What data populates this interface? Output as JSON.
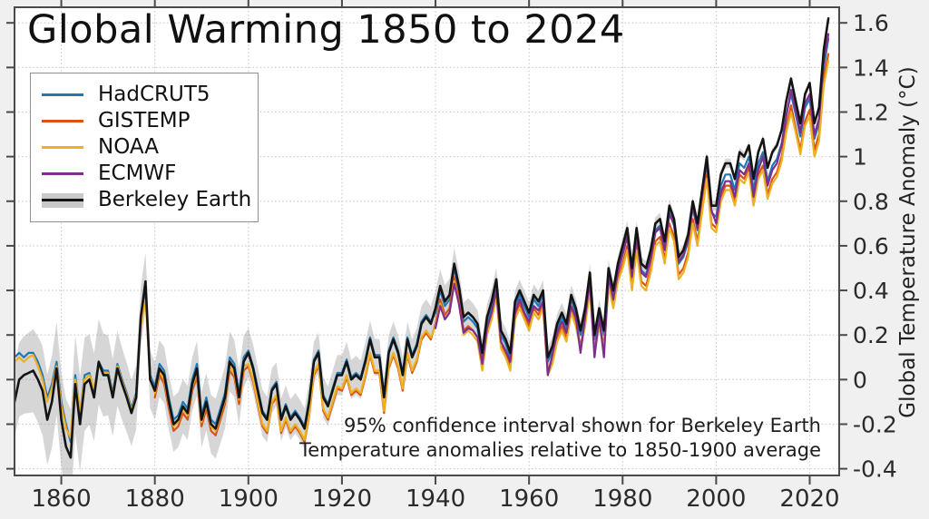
{
  "chart_data": {
    "type": "line",
    "title": "Global Warming 1850 to 2024",
    "right_axis_label": "Global Temperature Anomaly (°C)",
    "annotation_lines": [
      "95% confidence interval shown for Berkeley Earth",
      "Temperature anomalies relative to 1850-1900 average"
    ],
    "xlim": [
      1850,
      2026.3
    ],
    "ylim": [
      -0.43,
      1.67
    ],
    "x_ticks": [
      1860,
      1880,
      1900,
      1920,
      1940,
      1960,
      1980,
      2000,
      2020
    ],
    "y_ticks": [
      -0.4,
      -0.2,
      0,
      0.2,
      0.4,
      0.6,
      0.8,
      1,
      1.2,
      1.4,
      1.6
    ],
    "y_tick_labels": [
      "-0.4",
      "-0.2",
      "0",
      "0.2",
      "0.4",
      "0.6",
      "0.8",
      "1",
      "1.2",
      "1.4",
      "1.6"
    ],
    "grid": true,
    "legend_position": "upper-left",
    "colors": {
      "figure_background": "#f0f0f0",
      "plot_background": "#ffffff",
      "gridline": "#c9c9c9",
      "spine": "#4a4a4a",
      "tick_label": "#2b2b2b"
    },
    "series": [
      {
        "name": "HadCRUT5",
        "color": "#1f77b4",
        "start_year": 1850,
        "end_year": 2024,
        "values": [
          0.1,
          0.12,
          0.1,
          0.12,
          0.12,
          0.08,
          0.02,
          -0.08,
          -0.02,
          0.08,
          -0.1,
          -0.2,
          -0.28,
          0.02,
          -0.15,
          0.02,
          0.03,
          -0.05,
          0.08,
          0.04,
          0.04,
          -0.06,
          0.07,
          0.0,
          -0.06,
          -0.13,
          -0.06,
          0.26,
          0.4,
          0.02,
          -0.03,
          0.07,
          0.04,
          -0.08,
          -0.18,
          -0.16,
          -0.1,
          -0.13,
          0.0,
          0.07,
          -0.16,
          -0.08,
          -0.18,
          -0.2,
          -0.13,
          -0.06,
          0.1,
          0.07,
          -0.06,
          0.1,
          0.13,
          0.06,
          -0.04,
          -0.14,
          -0.17,
          -0.04,
          -0.01,
          -0.17,
          -0.11,
          -0.17,
          -0.14,
          -0.17,
          -0.21,
          -0.09,
          0.09,
          0.13,
          -0.07,
          -0.11,
          -0.04,
          0.03,
          0.03,
          0.09,
          0.01,
          0.03,
          0.01,
          0.09,
          0.19,
          0.11,
          0.11,
          -0.07,
          0.13,
          0.19,
          0.13,
          0.03,
          0.19,
          0.11,
          0.16,
          0.26,
          0.29,
          0.26,
          0.3,
          0.4,
          0.33,
          0.36,
          0.5,
          0.4,
          0.26,
          0.28,
          0.26,
          0.23,
          0.1,
          0.26,
          0.33,
          0.43,
          0.2,
          0.16,
          0.1,
          0.33,
          0.38,
          0.33,
          0.28,
          0.36,
          0.33,
          0.38,
          0.08,
          0.13,
          0.23,
          0.28,
          0.23,
          0.36,
          0.3,
          0.2,
          0.3,
          0.46,
          0.18,
          0.3,
          0.2,
          0.48,
          0.38,
          0.5,
          0.57,
          0.65,
          0.47,
          0.65,
          0.49,
          0.47,
          0.55,
          0.67,
          0.69,
          0.59,
          0.75,
          0.69,
          0.52,
          0.55,
          0.62,
          0.77,
          0.67,
          0.82,
          0.97,
          0.75,
          0.73,
          0.87,
          0.92,
          0.92,
          0.85,
          0.97,
          0.95,
          1.0,
          0.85,
          0.97,
          1.02,
          0.89,
          0.96,
          0.99,
          1.06,
          1.19,
          1.28,
          1.19,
          1.09,
          1.22,
          1.26,
          1.08,
          1.15,
          1.4,
          1.53
        ]
      },
      {
        "name": "GISTEMP",
        "color": "#d95319",
        "start_year": 1880,
        "end_year": 2024,
        "values": [
          -0.08,
          0.02,
          -0.02,
          -0.13,
          -0.23,
          -0.21,
          -0.15,
          -0.18,
          -0.05,
          0.01,
          -0.21,
          -0.13,
          -0.23,
          -0.25,
          -0.18,
          -0.11,
          0.04,
          0.01,
          -0.11,
          0.04,
          0.06,
          -0.01,
          -0.11,
          -0.21,
          -0.24,
          -0.11,
          -0.08,
          -0.24,
          -0.18,
          -0.24,
          -0.21,
          -0.24,
          -0.28,
          -0.16,
          0.02,
          0.06,
          -0.14,
          -0.18,
          -0.11,
          -0.04,
          -0.05,
          0.01,
          -0.07,
          -0.05,
          -0.07,
          0.01,
          0.11,
          0.03,
          0.03,
          -0.15,
          0.05,
          0.11,
          0.05,
          -0.05,
          0.11,
          0.03,
          0.08,
          0.18,
          0.21,
          0.18,
          0.25,
          0.36,
          0.29,
          0.32,
          0.46,
          0.36,
          0.22,
          0.24,
          0.22,
          0.19,
          0.06,
          0.22,
          0.29,
          0.39,
          0.16,
          0.12,
          0.06,
          0.29,
          0.34,
          0.29,
          0.24,
          0.32,
          0.29,
          0.34,
          0.04,
          0.09,
          0.19,
          0.24,
          0.19,
          0.32,
          0.25,
          0.15,
          0.25,
          0.41,
          0.13,
          0.25,
          0.15,
          0.43,
          0.33,
          0.45,
          0.52,
          0.6,
          0.42,
          0.6,
          0.44,
          0.42,
          0.5,
          0.62,
          0.64,
          0.54,
          0.7,
          0.64,
          0.47,
          0.5,
          0.57,
          0.72,
          0.62,
          0.77,
          0.92,
          0.7,
          0.68,
          0.82,
          0.87,
          0.87,
          0.8,
          0.92,
          0.9,
          0.95,
          0.8,
          0.92,
          0.96,
          0.83,
          0.9,
          0.93,
          1.0,
          1.13,
          1.23,
          1.13,
          1.03,
          1.16,
          1.21,
          1.03,
          1.1,
          1.35,
          1.46
        ]
      },
      {
        "name": "NOAA",
        "color": "#edb120",
        "start_year": 1850,
        "end_year": 2024,
        "values": [
          0.08,
          0.1,
          0.08,
          0.1,
          0.11,
          0.06,
          0.0,
          -0.1,
          -0.04,
          0.06,
          -0.12,
          -0.22,
          -0.26,
          0.0,
          -0.14,
          0.0,
          0.02,
          -0.04,
          0.06,
          0.03,
          0.03,
          -0.07,
          0.06,
          -0.01,
          -0.07,
          -0.14,
          -0.07,
          0.24,
          0.36,
          0.01,
          -0.06,
          0.04,
          0.0,
          -0.11,
          -0.21,
          -0.19,
          -0.13,
          -0.16,
          -0.03,
          0.03,
          -0.19,
          -0.11,
          -0.21,
          -0.23,
          -0.16,
          -0.09,
          0.06,
          0.03,
          -0.09,
          0.06,
          0.07,
          0.0,
          -0.1,
          -0.2,
          -0.23,
          -0.1,
          -0.07,
          -0.23,
          -0.17,
          -0.23,
          -0.2,
          -0.23,
          -0.27,
          -0.15,
          0.03,
          0.07,
          -0.13,
          -0.17,
          -0.1,
          -0.03,
          -0.04,
          0.02,
          -0.06,
          -0.04,
          -0.06,
          0.02,
          0.12,
          0.04,
          0.04,
          -0.14,
          0.06,
          0.12,
          0.06,
          -0.04,
          0.12,
          0.04,
          0.09,
          0.19,
          0.22,
          0.19,
          0.24,
          0.34,
          0.27,
          0.3,
          0.44,
          0.34,
          0.2,
          0.22,
          0.2,
          0.17,
          0.04,
          0.2,
          0.27,
          0.37,
          0.14,
          0.1,
          0.04,
          0.27,
          0.32,
          0.27,
          0.22,
          0.3,
          0.27,
          0.32,
          0.02,
          0.07,
          0.17,
          0.22,
          0.17,
          0.3,
          0.24,
          0.14,
          0.24,
          0.4,
          0.12,
          0.24,
          0.14,
          0.42,
          0.32,
          0.44,
          0.5,
          0.58,
          0.4,
          0.58,
          0.42,
          0.4,
          0.48,
          0.6,
          0.62,
          0.52,
          0.68,
          0.62,
          0.45,
          0.48,
          0.55,
          0.7,
          0.6,
          0.75,
          0.9,
          0.68,
          0.66,
          0.8,
          0.85,
          0.85,
          0.78,
          0.9,
          0.88,
          0.93,
          0.78,
          0.9,
          0.94,
          0.81,
          0.88,
          0.91,
          0.98,
          1.11,
          1.2,
          1.11,
          1.01,
          1.14,
          1.18,
          1.0,
          1.07,
          1.32,
          1.43
        ]
      },
      {
        "name": "ECMWF",
        "color": "#7e2f8e",
        "start_year": 1940,
        "end_year": 2024,
        "values": [
          0.23,
          0.33,
          0.27,
          0.3,
          0.43,
          0.34,
          0.21,
          0.23,
          0.22,
          0.19,
          0.07,
          0.23,
          0.3,
          0.4,
          0.17,
          0.13,
          0.08,
          0.3,
          0.36,
          0.3,
          0.26,
          0.33,
          0.31,
          0.35,
          0.02,
          0.11,
          0.21,
          0.26,
          0.21,
          0.33,
          0.28,
          0.12,
          0.28,
          0.44,
          0.1,
          0.28,
          0.1,
          0.46,
          0.36,
          0.48,
          0.56,
          0.64,
          0.46,
          0.64,
          0.48,
          0.46,
          0.54,
          0.66,
          0.68,
          0.58,
          0.74,
          0.7,
          0.53,
          0.56,
          0.63,
          0.78,
          0.68,
          0.83,
          0.98,
          0.76,
          0.7,
          0.84,
          0.89,
          0.89,
          0.82,
          0.94,
          0.92,
          0.97,
          0.82,
          0.94,
          1.0,
          0.87,
          0.94,
          0.97,
          1.05,
          1.18,
          1.3,
          1.21,
          1.11,
          1.24,
          1.28,
          1.1,
          1.17,
          1.43,
          1.55
        ]
      },
      {
        "name": "Berkeley Earth",
        "color": "#141414",
        "start_year": 1850,
        "end_year": 2024,
        "values": [
          -0.1,
          0.0,
          0.02,
          0.03,
          0.04,
          0.0,
          -0.05,
          -0.18,
          -0.1,
          0.05,
          -0.18,
          -0.3,
          -0.35,
          -0.02,
          -0.2,
          -0.02,
          0.0,
          -0.08,
          0.08,
          0.02,
          0.02,
          -0.08,
          0.05,
          -0.02,
          -0.08,
          -0.15,
          -0.08,
          0.28,
          0.44,
          0.0,
          -0.05,
          0.05,
          0.02,
          -0.1,
          -0.2,
          -0.18,
          -0.12,
          -0.15,
          -0.02,
          0.05,
          -0.18,
          -0.1,
          -0.2,
          -0.22,
          -0.15,
          -0.08,
          0.08,
          0.05,
          -0.08,
          0.08,
          0.12,
          0.05,
          -0.05,
          -0.15,
          -0.18,
          -0.05,
          -0.02,
          -0.18,
          -0.12,
          -0.18,
          -0.15,
          -0.18,
          -0.22,
          -0.1,
          0.08,
          0.12,
          -0.08,
          -0.12,
          -0.05,
          0.02,
          0.02,
          0.08,
          0.0,
          0.02,
          0.0,
          0.08,
          0.18,
          0.1,
          0.1,
          -0.08,
          0.12,
          0.18,
          0.12,
          0.02,
          0.18,
          0.1,
          0.15,
          0.25,
          0.28,
          0.25,
          0.32,
          0.42,
          0.35,
          0.38,
          0.52,
          0.42,
          0.28,
          0.3,
          0.28,
          0.25,
          0.12,
          0.28,
          0.35,
          0.45,
          0.22,
          0.18,
          0.12,
          0.35,
          0.4,
          0.35,
          0.3,
          0.38,
          0.35,
          0.4,
          0.1,
          0.15,
          0.25,
          0.3,
          0.25,
          0.38,
          0.32,
          0.22,
          0.32,
          0.48,
          0.2,
          0.32,
          0.22,
          0.5,
          0.4,
          0.52,
          0.6,
          0.68,
          0.5,
          0.68,
          0.52,
          0.5,
          0.58,
          0.7,
          0.72,
          0.62,
          0.78,
          0.72,
          0.55,
          0.58,
          0.65,
          0.8,
          0.7,
          0.85,
          1.0,
          0.78,
          0.78,
          0.92,
          0.97,
          0.97,
          0.9,
          1.02,
          1.0,
          1.05,
          0.9,
          1.02,
          1.08,
          0.95,
          1.02,
          1.05,
          1.12,
          1.25,
          1.35,
          1.25,
          1.15,
          1.28,
          1.33,
          1.15,
          1.22,
          1.48,
          1.62
        ],
        "uncertainty_band": {
          "label": "95% confidence interval",
          "color": "#8a8a8a",
          "opacity": 0.35,
          "halfwidth_points": [
            [
              1850,
              0.16
            ],
            [
              1856,
              0.2
            ],
            [
              1863,
              0.22
            ],
            [
              1870,
              0.18
            ],
            [
              1878,
              0.13
            ],
            [
              1888,
              0.12
            ],
            [
              1895,
              0.14
            ],
            [
              1900,
              0.11
            ],
            [
              1910,
              0.09
            ],
            [
              1920,
              0.09
            ],
            [
              1930,
              0.08
            ],
            [
              1938,
              0.08
            ],
            [
              1944,
              0.07
            ],
            [
              1955,
              0.05
            ],
            [
              1965,
              0.045
            ],
            [
              1975,
              0.04
            ],
            [
              1985,
              0.03
            ],
            [
              1995,
              0.025
            ],
            [
              2005,
              0.02
            ],
            [
              2015,
              0.016
            ],
            [
              2024,
              0.015
            ]
          ]
        }
      }
    ]
  }
}
